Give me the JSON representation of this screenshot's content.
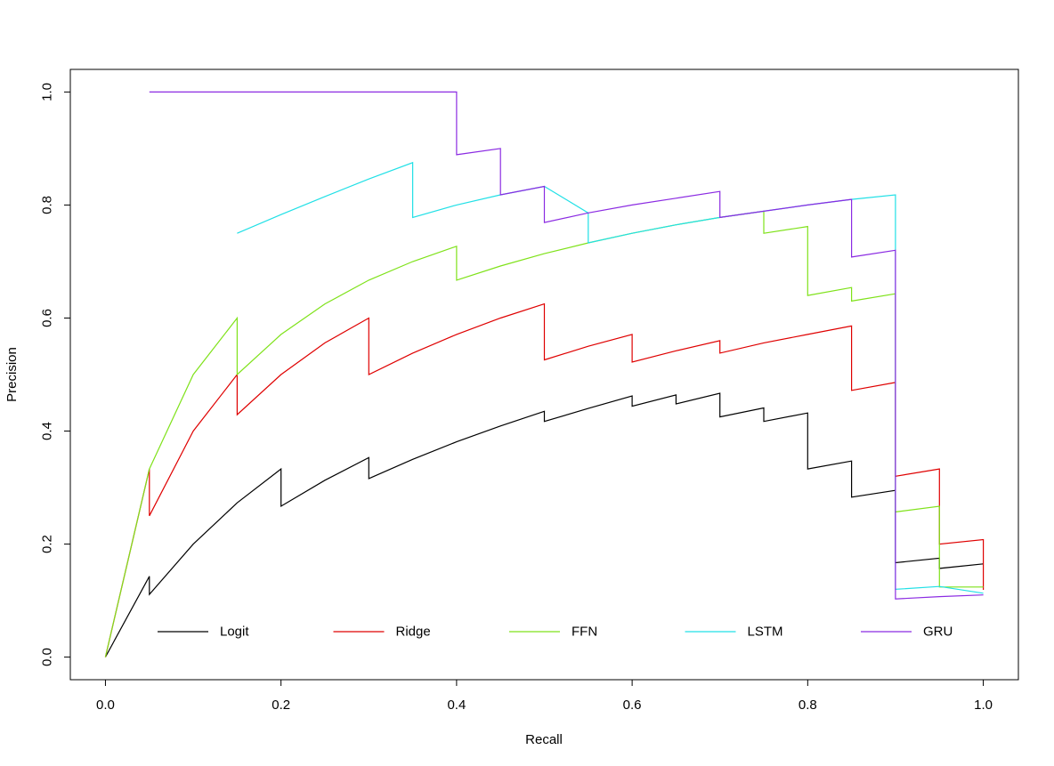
{
  "chart_data": {
    "type": "line",
    "title": "",
    "xlabel": "Recall",
    "ylabel": "Precision",
    "xlim": [
      -0.04,
      1.04
    ],
    "ylim": [
      -0.04,
      1.04
    ],
    "x_ticks": [
      0.0,
      0.2,
      0.4,
      0.6,
      0.8,
      1.0
    ],
    "x_tick_labels": [
      "0.0",
      "0.2",
      "0.4",
      "0.6",
      "0.8",
      "1.0"
    ],
    "y_ticks": [
      0.0,
      0.2,
      0.4,
      0.6,
      0.8,
      1.0
    ],
    "y_tick_labels": [
      "0.0",
      "0.2",
      "0.4",
      "0.6",
      "0.8",
      "1.0"
    ],
    "grid": false,
    "legend_position": "bottom",
    "series": [
      {
        "name": "Logit",
        "color": "#000000",
        "x": [
          0,
          0.05,
          0.05,
          0.1,
          0.15,
          0.2,
          0.2,
          0.25,
          0.3,
          0.3,
          0.35,
          0.4,
          0.45,
          0.5,
          0.5,
          0.55,
          0.6,
          0.6,
          0.65,
          0.65,
          0.7,
          0.7,
          0.75,
          0.75,
          0.8,
          0.8,
          0.85,
          0.85,
          0.9,
          0.9,
          0.95,
          0.95,
          1.0
        ],
        "y": [
          0,
          0.143,
          0.111,
          0.2,
          0.273,
          0.333,
          0.267,
          0.313,
          0.353,
          0.316,
          0.35,
          0.381,
          0.409,
          0.435,
          0.417,
          0.44,
          0.462,
          0.444,
          0.464,
          0.448,
          0.467,
          0.425,
          0.441,
          0.417,
          0.432,
          0.333,
          0.347,
          0.283,
          0.295,
          0.167,
          0.175,
          0.157,
          0.165
        ]
      },
      {
        "name": "Ridge",
        "color": "#df0000",
        "x": [
          0,
          0.05,
          0.05,
          0.1,
          0.15,
          0.15,
          0.2,
          0.25,
          0.3,
          0.3,
          0.35,
          0.4,
          0.45,
          0.5,
          0.5,
          0.55,
          0.6,
          0.6,
          0.65,
          0.7,
          0.7,
          0.75,
          0.8,
          0.85,
          0.85,
          0.9,
          0.9,
          0.95,
          0.95,
          1.0,
          1.0
        ],
        "y": [
          0,
          0.333,
          0.25,
          0.4,
          0.5,
          0.429,
          0.5,
          0.556,
          0.6,
          0.5,
          0.538,
          0.571,
          0.6,
          0.625,
          0.526,
          0.55,
          0.571,
          0.522,
          0.542,
          0.56,
          0.538,
          0.556,
          0.571,
          0.586,
          0.472,
          0.486,
          0.32,
          0.333,
          0.2,
          0.208,
          0.119
        ]
      },
      {
        "name": "FFN",
        "color": "#7fe21a",
        "x": [
          0,
          0.05,
          0.1,
          0.15,
          0.15,
          0.2,
          0.25,
          0.3,
          0.35,
          0.4,
          0.4,
          0.45,
          0.5,
          0.55,
          0.6,
          0.65,
          0.7,
          0.75,
          0.75,
          0.8,
          0.8,
          0.85,
          0.85,
          0.9,
          0.9,
          0.95,
          0.95,
          1.0
        ],
        "y": [
          0,
          0.333,
          0.5,
          0.6,
          0.5,
          0.571,
          0.625,
          0.667,
          0.7,
          0.727,
          0.667,
          0.692,
          0.714,
          0.733,
          0.75,
          0.765,
          0.778,
          0.789,
          0.75,
          0.762,
          0.64,
          0.654,
          0.63,
          0.643,
          0.257,
          0.267,
          0.124,
          0.124
        ]
      },
      {
        "name": "LSTM",
        "color": "#21e0e6",
        "x": [
          0.15,
          0.2,
          0.25,
          0.3,
          0.35,
          0.35,
          0.4,
          0.45,
          0.5,
          0.55,
          0.55,
          0.6,
          0.65,
          0.7,
          0.75,
          0.8,
          0.85,
          0.9,
          0.9,
          0.95,
          1.0
        ],
        "y": [
          0.75,
          0.783,
          0.815,
          0.846,
          0.875,
          0.778,
          0.8,
          0.818,
          0.833,
          0.786,
          0.733,
          0.75,
          0.765,
          0.778,
          0.789,
          0.8,
          0.81,
          0.818,
          0.12,
          0.125,
          0.113
        ]
      },
      {
        "name": "GRU",
        "color": "#8b2be2",
        "x": [
          0.05,
          0.4,
          0.4,
          0.45,
          0.45,
          0.5,
          0.5,
          0.55,
          0.6,
          0.65,
          0.7,
          0.7,
          0.75,
          0.8,
          0.85,
          0.85,
          0.9,
          0.9,
          0.95,
          1.0
        ],
        "y": [
          1.0,
          1.0,
          0.889,
          0.9,
          0.818,
          0.833,
          0.769,
          0.786,
          0.8,
          0.812,
          0.824,
          0.778,
          0.789,
          0.8,
          0.81,
          0.708,
          0.72,
          0.103,
          0.107,
          0.11
        ]
      }
    ]
  }
}
